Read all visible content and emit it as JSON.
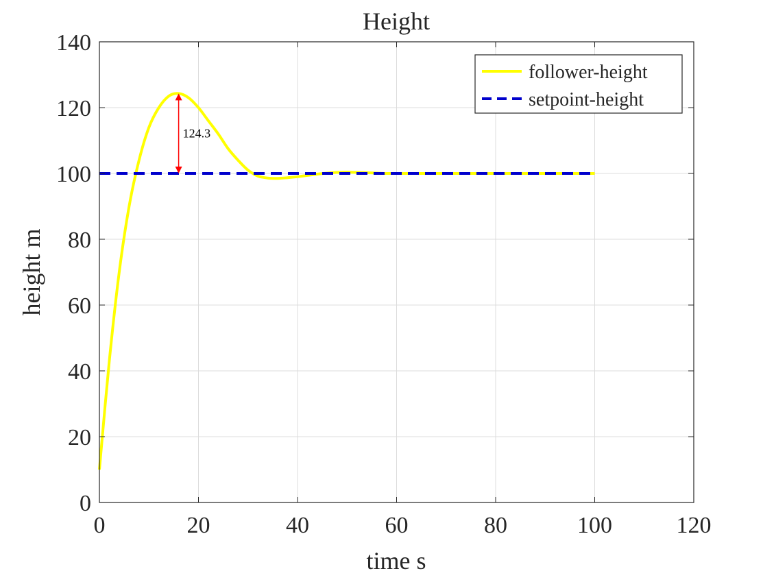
{
  "chart_data": {
    "type": "line",
    "title": "Height",
    "xlabel": "time s",
    "ylabel": "height m",
    "xlim": [
      0,
      120
    ],
    "ylim": [
      0,
      140
    ],
    "xticks": [
      0,
      20,
      40,
      60,
      80,
      100,
      120
    ],
    "yticks": [
      0,
      20,
      40,
      60,
      80,
      100,
      120,
      140
    ],
    "grid": true,
    "legend_position": "top-right",
    "series": [
      {
        "name": "follower-height",
        "color": "#ffff00",
        "style": "solid",
        "x": [
          0,
          2,
          4,
          6,
          8,
          10,
          12,
          14,
          16,
          18,
          20,
          22,
          24,
          26,
          28,
          30,
          32,
          34,
          36,
          38,
          40,
          42,
          44,
          46,
          48,
          50,
          52,
          54,
          56,
          58,
          60,
          65,
          70,
          75,
          80,
          85,
          90,
          95,
          100
        ],
        "y": [
          10,
          43,
          70,
          90,
          104,
          114,
          120,
          123.5,
          124.3,
          123,
          120,
          116,
          112,
          107.5,
          104,
          101,
          99.2,
          98.6,
          98.5,
          98.7,
          99,
          99.4,
          99.8,
          100.1,
          100.3,
          100.4,
          100.3,
          100.2,
          100.1,
          100,
          100,
          100,
          100,
          100,
          100,
          100,
          100,
          100,
          100
        ]
      },
      {
        "name": "setpoint-height",
        "color": "#0000cc",
        "style": "dashed",
        "x": [
          0,
          100
        ],
        "y": [
          100,
          100
        ]
      }
    ],
    "annotations": [
      {
        "text": "124.3",
        "x": 16,
        "y_from": 100,
        "y_to": 124.3,
        "color": "#ff0000"
      }
    ]
  }
}
